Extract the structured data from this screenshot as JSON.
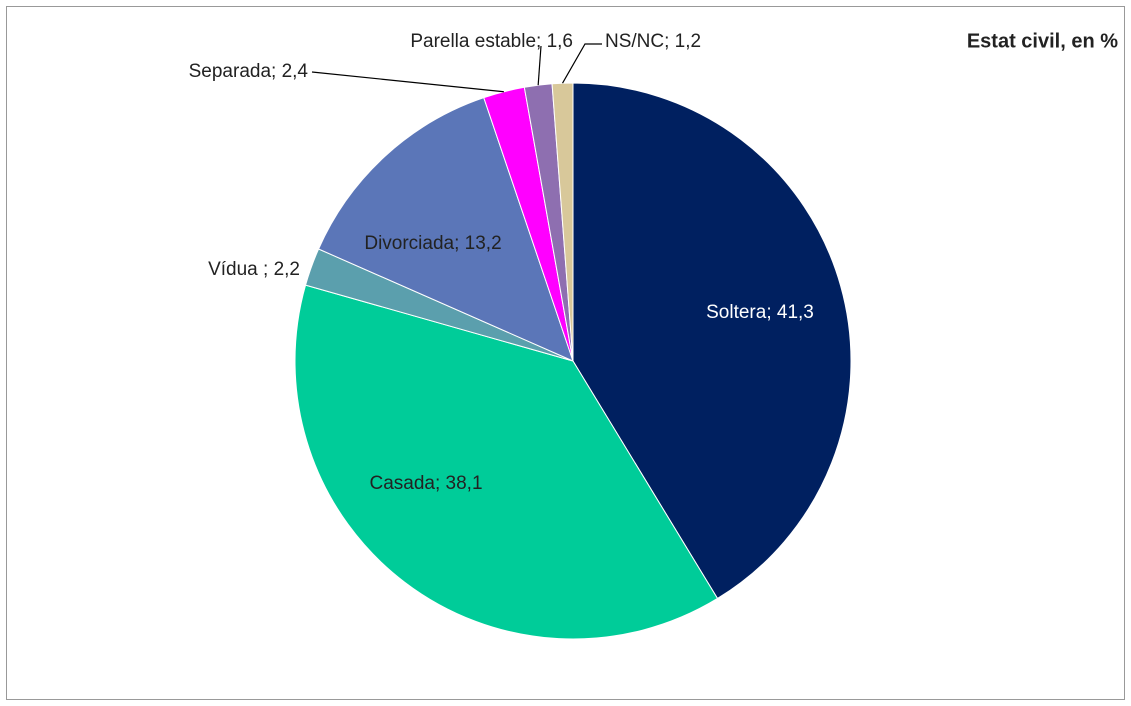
{
  "chart_data": {
    "type": "pie",
    "title": "Estat civil, en %",
    "values": [
      41.3,
      38.1,
      2.2,
      13.2,
      2.4,
      1.6,
      1.2
    ],
    "value_labels": [
      "Soltera; 41,3",
      "Casada; 38,1",
      "Vídua ; 2,2",
      "Divorciada; 13,2",
      "Separada; 2,4",
      "Parella estable; 1,6",
      "NS/NC; 1,2"
    ],
    "colors": [
      "#002060",
      "#00cc99",
      "#5b9fad",
      "#5b76b8",
      "#ff00ff",
      "#8e6fb0",
      "#d8c89a"
    ]
  }
}
